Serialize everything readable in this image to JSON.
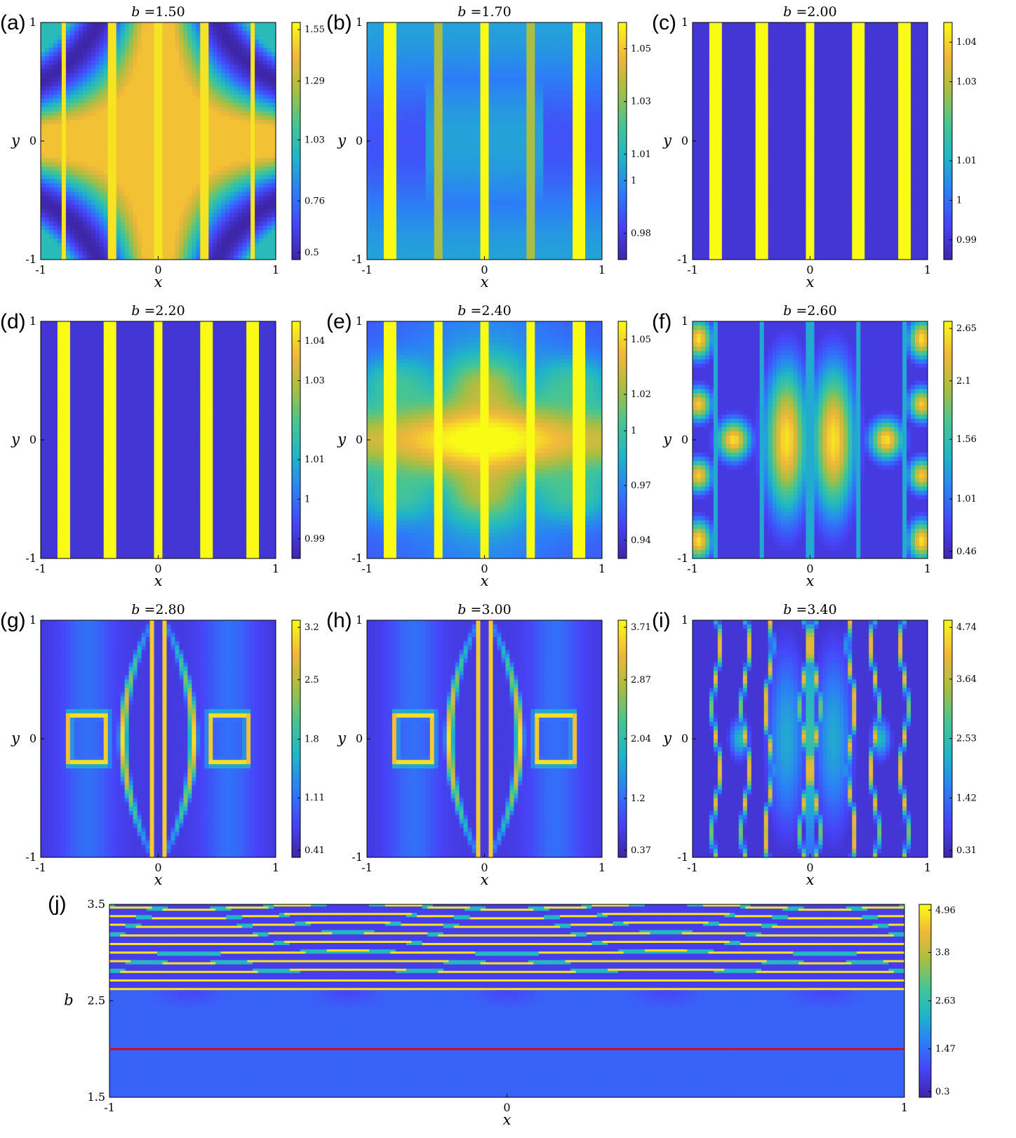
{
  "colors": {
    "colormap": [
      "#3e26a8",
      "#4743f8",
      "#2c7ef7",
      "#1fb5c7",
      "#46c593",
      "#a8be41",
      "#f1b73a",
      "#f9fb15"
    ],
    "red_line": "#e00000"
  },
  "chart_data": [
    {
      "type": "heatmap",
      "panel": "(a)",
      "title_var": "b",
      "title_eq": "=1.50",
      "xlabel": "x",
      "ylabel": "y",
      "xticks": [
        "-1",
        "0",
        "1"
      ],
      "yticks": [
        "1",
        "0",
        "-1"
      ],
      "xlim": [
        -1,
        1
      ],
      "ylim": [
        -1,
        1
      ],
      "colorbar_ticks": [
        "1.55",
        "1.29",
        "1.03",
        "0.76",
        "0.5"
      ],
      "clim": [
        0.5,
        1.55
      ],
      "pattern": "cross"
    },
    {
      "type": "heatmap",
      "panel": "(b)",
      "title_var": "b",
      "title_eq": "=1.70",
      "xlabel": "x",
      "ylabel": "y",
      "xticks": [
        "-1",
        "0",
        "1"
      ],
      "yticks": [
        "1",
        "0",
        "-1"
      ],
      "xlim": [
        -1,
        1
      ],
      "ylim": [
        -1,
        1
      ],
      "colorbar_ticks": [
        "1.05",
        "1.03",
        "1.01",
        "1",
        "0.98"
      ],
      "clim": [
        0.97,
        1.06
      ],
      "pattern": "stripes-soft"
    },
    {
      "type": "heatmap",
      "panel": "(c)",
      "title_var": "b",
      "title_eq": "=2.00",
      "xlabel": "x",
      "ylabel": "y",
      "xticks": [
        "-1",
        "0",
        "1"
      ],
      "yticks": [
        "1",
        "0",
        "-1"
      ],
      "xlim": [
        -1,
        1
      ],
      "ylim": [
        -1,
        1
      ],
      "colorbar_ticks": [
        "1.04",
        "1.03",
        "1.01",
        "1",
        "0.99"
      ],
      "clim": [
        0.985,
        1.045
      ],
      "pattern": "stripes"
    },
    {
      "type": "heatmap",
      "panel": "(d)",
      "title_var": "b",
      "title_eq": "=2.20",
      "xlabel": "x",
      "ylabel": "y",
      "xticks": [
        "-1",
        "0",
        "1"
      ],
      "yticks": [
        "1",
        "0",
        "-1"
      ],
      "xlim": [
        -1,
        1
      ],
      "ylim": [
        -1,
        1
      ],
      "colorbar_ticks": [
        "1.04",
        "1.03",
        "1.01",
        "1",
        "0.99"
      ],
      "clim": [
        0.985,
        1.045
      ],
      "pattern": "stripes"
    },
    {
      "type": "heatmap",
      "panel": "(e)",
      "title_var": "b",
      "title_eq": "=2.40",
      "xlabel": "x",
      "ylabel": "y",
      "xticks": [
        "-1",
        "0",
        "1"
      ],
      "yticks": [
        "1",
        "0",
        "-1"
      ],
      "xlim": [
        -1,
        1
      ],
      "ylim": [
        -1,
        1
      ],
      "colorbar_ticks": [
        "1.05",
        "1.02",
        "1",
        "0.97",
        "0.94"
      ],
      "clim": [
        0.93,
        1.06
      ],
      "pattern": "lattice"
    },
    {
      "type": "heatmap",
      "panel": "(f)",
      "title_var": "b",
      "title_eq": "=2.60",
      "xlabel": "x",
      "ylabel": "y",
      "xticks": [
        "-1",
        "0",
        "1"
      ],
      "yticks": [
        "1",
        "0",
        "-1"
      ],
      "xlim": [
        -1,
        1
      ],
      "ylim": [
        -1,
        1
      ],
      "colorbar_ticks": [
        "2.65",
        "2.1",
        "1.56",
        "1.01",
        "0.46"
      ],
      "clim": [
        0.46,
        2.65
      ],
      "pattern": "blobs"
    },
    {
      "type": "heatmap",
      "panel": "(g)",
      "title_var": "b",
      "title_eq": "=2.80",
      "xlabel": "x",
      "ylabel": "y",
      "xticks": [
        "-1",
        "0",
        "1"
      ],
      "yticks": [
        "1",
        "0",
        "-1"
      ],
      "xlim": [
        -1,
        1
      ],
      "ylim": [
        -1,
        1
      ],
      "colorbar_ticks": [
        "3.2",
        "2.5",
        "1.8",
        "1.11",
        "0.41"
      ],
      "clim": [
        0.41,
        3.2
      ],
      "pattern": "rings"
    },
    {
      "type": "heatmap",
      "panel": "(h)",
      "title_var": "b",
      "title_eq": "=3.00",
      "xlabel": "x",
      "ylabel": "y",
      "xticks": [
        "-1",
        "0",
        "1"
      ],
      "yticks": [
        "1",
        "0",
        "-1"
      ],
      "xlim": [
        -1,
        1
      ],
      "ylim": [
        -1,
        1
      ],
      "colorbar_ticks": [
        "3.71",
        "2.87",
        "2.04",
        "1.2",
        "0.37"
      ],
      "clim": [
        0.37,
        3.71
      ],
      "pattern": "rings"
    },
    {
      "type": "heatmap",
      "panel": "(i)",
      "title_var": "b",
      "title_eq": "=3.40",
      "xlabel": "x",
      "ylabel": "y",
      "xticks": [
        "-1",
        "0",
        "1"
      ],
      "yticks": [
        "1",
        "0",
        "-1"
      ],
      "xlim": [
        -1,
        1
      ],
      "ylim": [
        -1,
        1
      ],
      "colorbar_ticks": [
        "4.74",
        "3.64",
        "2.53",
        "1.42",
        "0.31"
      ],
      "clim": [
        0.31,
        4.74
      ],
      "pattern": "filaments"
    },
    {
      "type": "heatmap",
      "panel": "(j)",
      "title_var": "",
      "title_eq": "",
      "xlabel": "x",
      "ylabel": "b",
      "xticks": [
        "-1",
        "0",
        "1"
      ],
      "yticks": [
        "3.5",
        "2.5",
        "1.5"
      ],
      "xlim": [
        -1,
        1
      ],
      "ylim": [
        1.5,
        3.5
      ],
      "colorbar_ticks": [
        "4.96",
        "3.8",
        "2.63",
        "1.47",
        "0.3"
      ],
      "clim": [
        0.3,
        4.96
      ],
      "hline_b": 2.0,
      "pattern": "bifurcation"
    }
  ]
}
